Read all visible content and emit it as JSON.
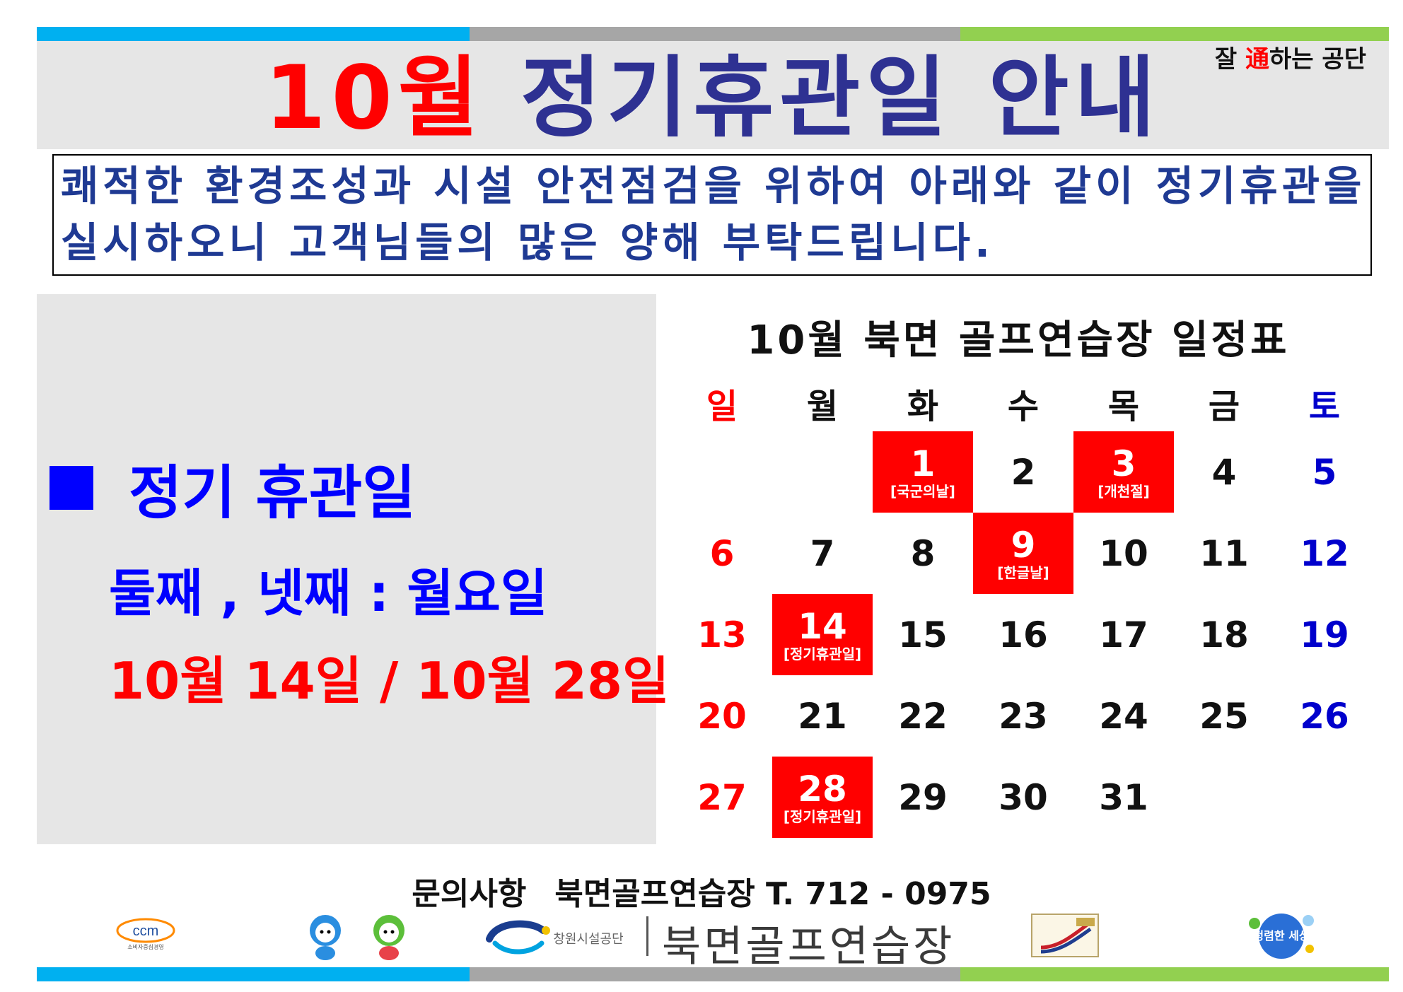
{
  "header": {
    "title_month": "10월",
    "title_rest": "정기휴관일 안내",
    "slogan_pre": "잘 ",
    "slogan_highlight": "通",
    "slogan_post": "하는 공단"
  },
  "notice": {
    "line1": "쾌적한 환경조성과 시설 안전점검을 위하여 아래와 같이 정기휴관을",
    "line2": "실시하오니 고객님들의 많은 양해 부탁드립니다."
  },
  "closed_info": {
    "heading": "정기 휴관일",
    "days": "둘째 , 넷째 : 월요일",
    "dates": "10월 14일 / 10월 28일"
  },
  "calendar": {
    "title": "10월 북면 골프연습장 일정표",
    "weekdays": [
      "일",
      "월",
      "화",
      "수",
      "목",
      "금",
      "토"
    ],
    "weeks": [
      [
        null,
        null,
        {
          "day": "1",
          "note": "[국군의날]"
        },
        {
          "day": "2"
        },
        {
          "day": "3",
          "note": "[개천절]"
        },
        {
          "day": "4"
        },
        {
          "day": "5"
        }
      ],
      [
        {
          "day": "6"
        },
        {
          "day": "7"
        },
        {
          "day": "8"
        },
        {
          "day": "9",
          "note": "[한글날]"
        },
        {
          "day": "10"
        },
        {
          "day": "11"
        },
        {
          "day": "12"
        }
      ],
      [
        {
          "day": "13"
        },
        {
          "day": "14",
          "note": "[정기휴관일]"
        },
        {
          "day": "15"
        },
        {
          "day": "16"
        },
        {
          "day": "17"
        },
        {
          "day": "18"
        },
        {
          "day": "19"
        }
      ],
      [
        {
          "day": "20"
        },
        {
          "day": "21"
        },
        {
          "day": "22"
        },
        {
          "day": "23"
        },
        {
          "day": "24"
        },
        {
          "day": "25"
        },
        {
          "day": "26"
        }
      ],
      [
        {
          "day": "27"
        },
        {
          "day": "28",
          "note": "[정기휴관일]"
        },
        {
          "day": "29"
        },
        {
          "day": "30"
        },
        {
          "day": "31"
        },
        null,
        null
      ]
    ],
    "colors": {
      "holiday": "#ff0000",
      "sunday": "#ff0000",
      "saturday": "#0000cc"
    }
  },
  "contact": {
    "label": "문의사항",
    "text": "북면골프연습장 T. 712 - 0975"
  },
  "footer": {
    "ccm_logo_text": "ccm",
    "ccm_caption": "소비자중심경영",
    "corp_logo_text": "창원시설공단",
    "facility_name": "북면골프연습장",
    "slogan_logo_text": "청렴한 세상"
  },
  "brand_colors": {
    "stripe_blue": "#00b0f0",
    "stripe_gray": "#a6a6a6",
    "stripe_green": "#92d050",
    "title_red": "#ff0000",
    "title_navy": "#2e3192"
  }
}
